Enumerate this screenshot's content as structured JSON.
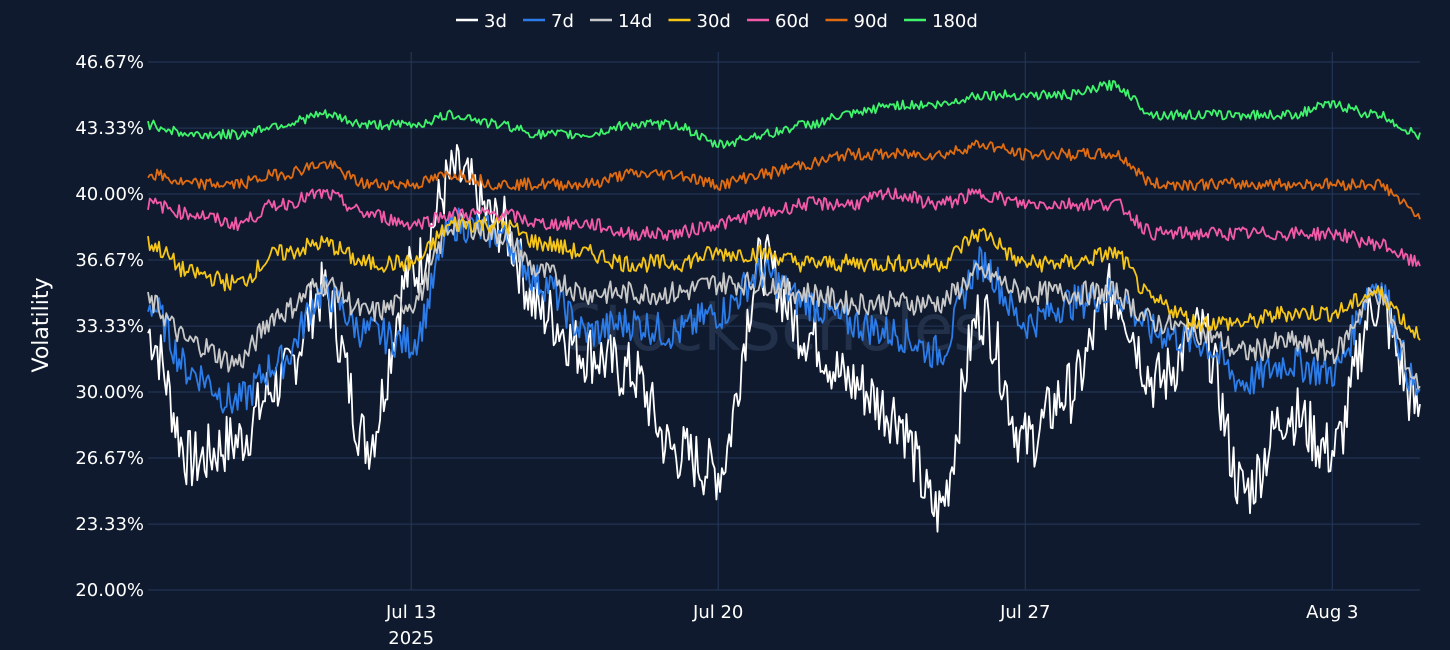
{
  "chart_data": {
    "type": "line",
    "ylabel": "Volatility",
    "ylim": [
      20.0,
      46.67
    ],
    "yticks": [
      "20.00%",
      "23.33%",
      "26.67%",
      "30.00%",
      "33.33%",
      "36.67%",
      "40.00%",
      "43.33%",
      "46.67%"
    ],
    "ytick_values": [
      20.0,
      23.33,
      26.67,
      30.0,
      33.33,
      36.67,
      40.0,
      43.33,
      46.67
    ],
    "x_start": "2025-07-07",
    "x_end": "2025-08-05",
    "xticks": [
      {
        "date": "2025-07-13",
        "label": "Jul 13",
        "sublabel": "2025"
      },
      {
        "date": "2025-07-20",
        "label": "Jul 20",
        "sublabel": ""
      },
      {
        "date": "2025-07-27",
        "label": "Jul 27",
        "sublabel": ""
      },
      {
        "date": "2025-08-03",
        "label": "Aug 3",
        "sublabel": ""
      }
    ],
    "grid": true,
    "legend_position": "top-center",
    "watermark": "StockScholes",
    "x": [
      "2025-07-07",
      "2025-07-08",
      "2025-07-09",
      "2025-07-10",
      "2025-07-11",
      "2025-07-12",
      "2025-07-13",
      "2025-07-14",
      "2025-07-15",
      "2025-07-16",
      "2025-07-17",
      "2025-07-18",
      "2025-07-19",
      "2025-07-20",
      "2025-07-21",
      "2025-07-22",
      "2025-07-23",
      "2025-07-24",
      "2025-07-25",
      "2025-07-26",
      "2025-07-27",
      "2025-07-28",
      "2025-07-29",
      "2025-07-30",
      "2025-07-31",
      "2025-08-01",
      "2025-08-02",
      "2025-08-03",
      "2025-08-04",
      "2025-08-05"
    ],
    "series": [
      {
        "name": "3d",
        "color": "#ffffff",
        "values": [
          33.0,
          26.5,
          27.5,
          30.5,
          35.0,
          27.5,
          36.0,
          41.0,
          38.5,
          34.0,
          32.0,
          31.0,
          27.0,
          26.0,
          36.5,
          33.0,
          30.5,
          29.0,
          24.0,
          34.0,
          27.5,
          30.0,
          35.0,
          30.5,
          33.0,
          25.0,
          29.0,
          27.0,
          34.5,
          29.0
        ]
      },
      {
        "name": "7d",
        "color": "#2b7ce9",
        "values": [
          34.5,
          31.0,
          29.5,
          31.5,
          35.0,
          33.0,
          32.5,
          38.5,
          38.0,
          35.5,
          33.0,
          33.5,
          33.0,
          34.0,
          36.0,
          34.5,
          33.5,
          33.0,
          32.0,
          36.5,
          33.5,
          34.5,
          35.0,
          33.0,
          32.5,
          30.5,
          31.5,
          31.0,
          35.5,
          30.0
        ]
      },
      {
        "name": "14d",
        "color": "#c8c8c8",
        "values": [
          34.5,
          32.5,
          31.5,
          34.0,
          35.5,
          34.0,
          34.5,
          38.5,
          38.0,
          36.0,
          35.0,
          35.0,
          35.0,
          35.5,
          35.5,
          35.0,
          34.5,
          34.5,
          34.5,
          36.0,
          35.0,
          35.0,
          35.0,
          33.5,
          33.0,
          32.0,
          32.5,
          32.0,
          35.0,
          30.5
        ]
      },
      {
        "name": "30d",
        "color": "#f5c518",
        "values": [
          37.5,
          36.0,
          35.5,
          37.0,
          37.5,
          36.5,
          36.5,
          38.5,
          38.5,
          37.5,
          37.0,
          36.5,
          36.5,
          37.0,
          37.0,
          36.5,
          36.5,
          36.5,
          36.5,
          38.0,
          36.5,
          36.5,
          37.0,
          34.5,
          33.5,
          33.5,
          34.0,
          34.0,
          35.0,
          33.0
        ]
      },
      {
        "name": "60d",
        "color": "#f25aa8",
        "values": [
          39.5,
          39.0,
          38.5,
          39.5,
          40.0,
          39.0,
          38.5,
          39.0,
          39.0,
          38.5,
          38.5,
          38.0,
          38.0,
          38.5,
          39.0,
          39.5,
          39.5,
          40.0,
          39.5,
          40.0,
          39.5,
          39.5,
          39.5,
          38.0,
          38.0,
          38.0,
          38.0,
          38.0,
          37.5,
          36.5
        ]
      },
      {
        "name": "90d",
        "color": "#e06c12",
        "values": [
          41.0,
          40.5,
          40.5,
          41.0,
          41.5,
          40.5,
          40.5,
          41.0,
          40.5,
          40.5,
          40.5,
          41.0,
          41.0,
          40.5,
          41.0,
          41.5,
          42.0,
          42.0,
          42.0,
          42.5,
          42.0,
          42.0,
          42.0,
          40.5,
          40.5,
          40.5,
          40.5,
          40.5,
          40.5,
          39.0
        ]
      },
      {
        "name": "180d",
        "color": "#3ff36b",
        "values": [
          43.5,
          43.0,
          43.0,
          43.5,
          44.0,
          43.5,
          43.5,
          44.0,
          43.5,
          43.0,
          43.0,
          43.5,
          43.5,
          42.5,
          43.0,
          43.5,
          44.0,
          44.5,
          44.5,
          45.0,
          45.0,
          45.0,
          45.5,
          44.0,
          44.0,
          44.0,
          44.0,
          44.5,
          44.0,
          43.0
        ]
      }
    ]
  }
}
